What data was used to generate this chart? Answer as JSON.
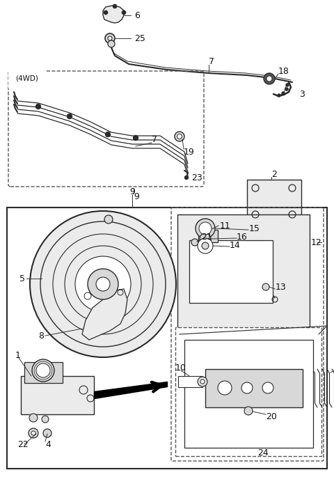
{
  "bg_color": "#ffffff",
  "line_color": "#2a2a2a",
  "gray_fill": "#d8d8d8",
  "light_gray": "#ebebeb",
  "figsize": [
    4.8,
    6.85
  ],
  "dpi": 100,
  "xlim": [
    0,
    480
  ],
  "ylim": [
    0,
    685
  ]
}
